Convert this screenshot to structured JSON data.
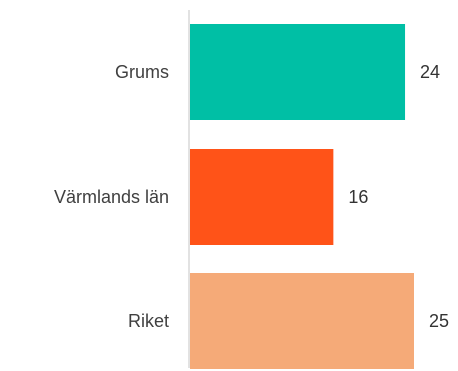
{
  "chart_data": {
    "type": "bar",
    "orientation": "horizontal",
    "categories": [
      "Grums",
      "Värmlands län",
      "Riket"
    ],
    "values": [
      24,
      16,
      25
    ],
    "colors": [
      "#00bfa5",
      "#ff5318",
      "#f5aa78"
    ],
    "value_labels": [
      "24",
      "16",
      "25"
    ],
    "title": "",
    "xlabel": "",
    "ylabel": "",
    "xlim": [
      0,
      25
    ],
    "grid": false,
    "legend": "none",
    "axis_color": "#d9d9d9"
  }
}
